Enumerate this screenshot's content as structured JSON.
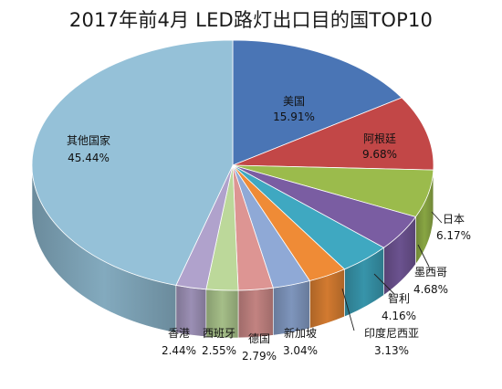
{
  "chart_data": {
    "type": "pie",
    "title": "2017年前4月 LED路灯出口目的国TOP10",
    "slices": [
      {
        "name": "美国",
        "value": 15.91,
        "label": "15.91%",
        "color": "#4a75b5"
      },
      {
        "name": "阿根廷",
        "value": 9.68,
        "label": "9.68%",
        "color": "#c24747"
      },
      {
        "name": "日本",
        "value": 6.17,
        "label": "6.17%",
        "color": "#9bbb4c"
      },
      {
        "name": "墨西哥",
        "value": 4.68,
        "label": "4.68%",
        "color": "#7a5da2"
      },
      {
        "name": "智利",
        "value": 4.16,
        "label": "4.16%",
        "color": "#3fa8c1"
      },
      {
        "name": "印度尼西亚",
        "value": 3.13,
        "label": "3.13%",
        "color": "#ef8b36"
      },
      {
        "name": "新加坡",
        "value": 3.04,
        "label": "3.04%",
        "color": "#8fa9d6"
      },
      {
        "name": "德国",
        "value": 2.79,
        "label": "2.79%",
        "color": "#dd9593"
      },
      {
        "name": "西班牙",
        "value": 2.55,
        "label": "2.55%",
        "color": "#bcd89a"
      },
      {
        "name": "香港",
        "value": 2.44,
        "label": "2.44%",
        "color": "#b0a2cc"
      },
      {
        "name": "其他国家",
        "value": 45.44,
        "label": "45.44%",
        "color": "#95c1d8"
      }
    ]
  }
}
